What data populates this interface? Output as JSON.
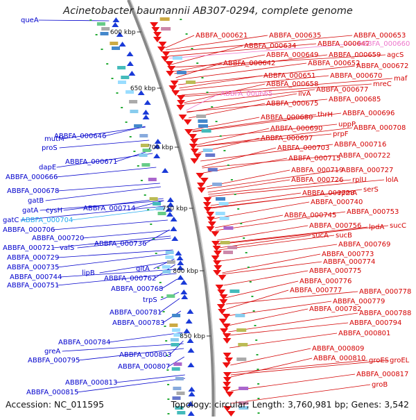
{
  "title": "Acinetobacter baumannii AB307-0294, complete genome",
  "footer": {
    "accession": "Accession: NC_011595",
    "topology": "Topology: circular; Length: 3,760,981 bp; Genes: 3,542"
  },
  "colors": {
    "left_label": "#0000cc",
    "left_label_highlight": "#22aaee",
    "right_label": "#d40000",
    "right_label_highlight": "#ee77cc",
    "backbone": "#888888",
    "forward_arrow": "#1a3ad8",
    "reverse_arrow": "#ee1111",
    "tick_text": "#111111"
  },
  "ticks": [
    "600 kbp",
    "650 kbp",
    "700 kbp",
    "750 kbp",
    "800 kbp",
    "850 kbp"
  ],
  "left_labels": [
    {
      "text": "queA"
    },
    {
      "text": "mutM"
    },
    {
      "text": "ABBFA_000646"
    },
    {
      "text": "proS"
    },
    {
      "text": "dapE"
    },
    {
      "text": "ABBFA_000671"
    },
    {
      "text": "ABBFA_000666"
    },
    {
      "text": "ABBFA_000678"
    },
    {
      "text": "gatB"
    },
    {
      "text": "cysH"
    },
    {
      "text": "gatA"
    },
    {
      "text": "ABBFA_000714"
    },
    {
      "text": "gatC"
    },
    {
      "text": "ABBFA_000704",
      "highlight": true
    },
    {
      "text": "ABBFA_000706"
    },
    {
      "text": "ABBFA_000720"
    },
    {
      "text": "ABBFA_000736"
    },
    {
      "text": "ABBFA_000721"
    },
    {
      "text": "valS"
    },
    {
      "text": "ABBFA_000729"
    },
    {
      "text": "ABBFA_000735"
    },
    {
      "text": "lipB"
    },
    {
      "text": "gltA"
    },
    {
      "text": "ABBFA_000744"
    },
    {
      "text": "ABBFA_000762"
    },
    {
      "text": "ABBFA_000751"
    },
    {
      "text": "ABBFA_000768"
    },
    {
      "text": "trpS"
    },
    {
      "text": "ABBFA_000781"
    },
    {
      "text": "ABBFA_000783"
    },
    {
      "text": "ABBFA_000784"
    },
    {
      "text": "greA"
    },
    {
      "text": "ABBFA_000803"
    },
    {
      "text": "ABBFA_000795"
    },
    {
      "text": "ABBFA_000807"
    },
    {
      "text": "ABBFA_000813"
    },
    {
      "text": "ABBFA_000815"
    }
  ],
  "right_labels": [
    {
      "text": "ABBFA_000621"
    },
    {
      "text": "ABBFA_000635"
    },
    {
      "text": "ABBFA_000653"
    },
    {
      "text": "ABBFA_000634"
    },
    {
      "text": "ABBFA_000647"
    },
    {
      "text": "ABBFA_000660",
      "highlight": true
    },
    {
      "text": "ABBFA_000649"
    },
    {
      "text": "ABBFA_000659"
    },
    {
      "text": "agcS"
    },
    {
      "text": "ABBFA_000642"
    },
    {
      "text": "ABBFA_000652"
    },
    {
      "text": "ABBFA_000672"
    },
    {
      "text": "ABBFA_000651"
    },
    {
      "text": "ABBFA_000670"
    },
    {
      "text": "maf"
    },
    {
      "text": "ABBFA_000658"
    },
    {
      "text": "mreC"
    },
    {
      "text": "ABBFA_000677"
    },
    {
      "text": "ABBFA_000665",
      "highlight": true
    },
    {
      "text": "ilvA"
    },
    {
      "text": "ABBFA_000685"
    },
    {
      "text": "ABBFA_000675"
    },
    {
      "text": "thrH"
    },
    {
      "text": "ABBFA_000696"
    },
    {
      "text": "ABBFA_000680"
    },
    {
      "text": "uppP"
    },
    {
      "text": "ABBFA_000690"
    },
    {
      "text": "ABBFA_000708"
    },
    {
      "text": "prpF"
    },
    {
      "text": "ABBFA_000697"
    },
    {
      "text": "ABBFA_000716"
    },
    {
      "text": "ABBFA_000703"
    },
    {
      "text": "ABBFA_000722"
    },
    {
      "text": "ABBFA_000715"
    },
    {
      "text": "ABBFA_000719"
    },
    {
      "text": "ABBFA_000727"
    },
    {
      "text": "ABBFA_000726"
    },
    {
      "text": "rplU"
    },
    {
      "text": "lolA"
    },
    {
      "text": "serS"
    },
    {
      "text": "ABBFA_000728"
    },
    {
      "text": "rpmA"
    },
    {
      "text": "ABBFA_000740"
    },
    {
      "text": "ABBFA_000753"
    },
    {
      "text": "ABBFA_000745"
    },
    {
      "text": "ABBFA_000756"
    },
    {
      "text": "lpdA"
    },
    {
      "text": "sucC"
    },
    {
      "text": "sucA"
    },
    {
      "text": "sucB"
    },
    {
      "text": "ABBFA_000769"
    },
    {
      "text": "ABBFA_000773"
    },
    {
      "text": "ABBFA_000774"
    },
    {
      "text": "ABBFA_000775"
    },
    {
      "text": "ABBFA_000776"
    },
    {
      "text": "ABBFA_000777"
    },
    {
      "text": "ABBFA_000778"
    },
    {
      "text": "ABBFA_000779"
    },
    {
      "text": "ABBFA_000782"
    },
    {
      "text": "ABBFA_000788"
    },
    {
      "text": "ABBFA_000794"
    },
    {
      "text": "ABBFA_000801"
    },
    {
      "text": "ABBFA_000809"
    },
    {
      "text": "ABBFA_000810"
    },
    {
      "text": "groES"
    },
    {
      "text": "groEL"
    },
    {
      "text": "ABBFA_000817"
    },
    {
      "text": "groB"
    }
  ]
}
